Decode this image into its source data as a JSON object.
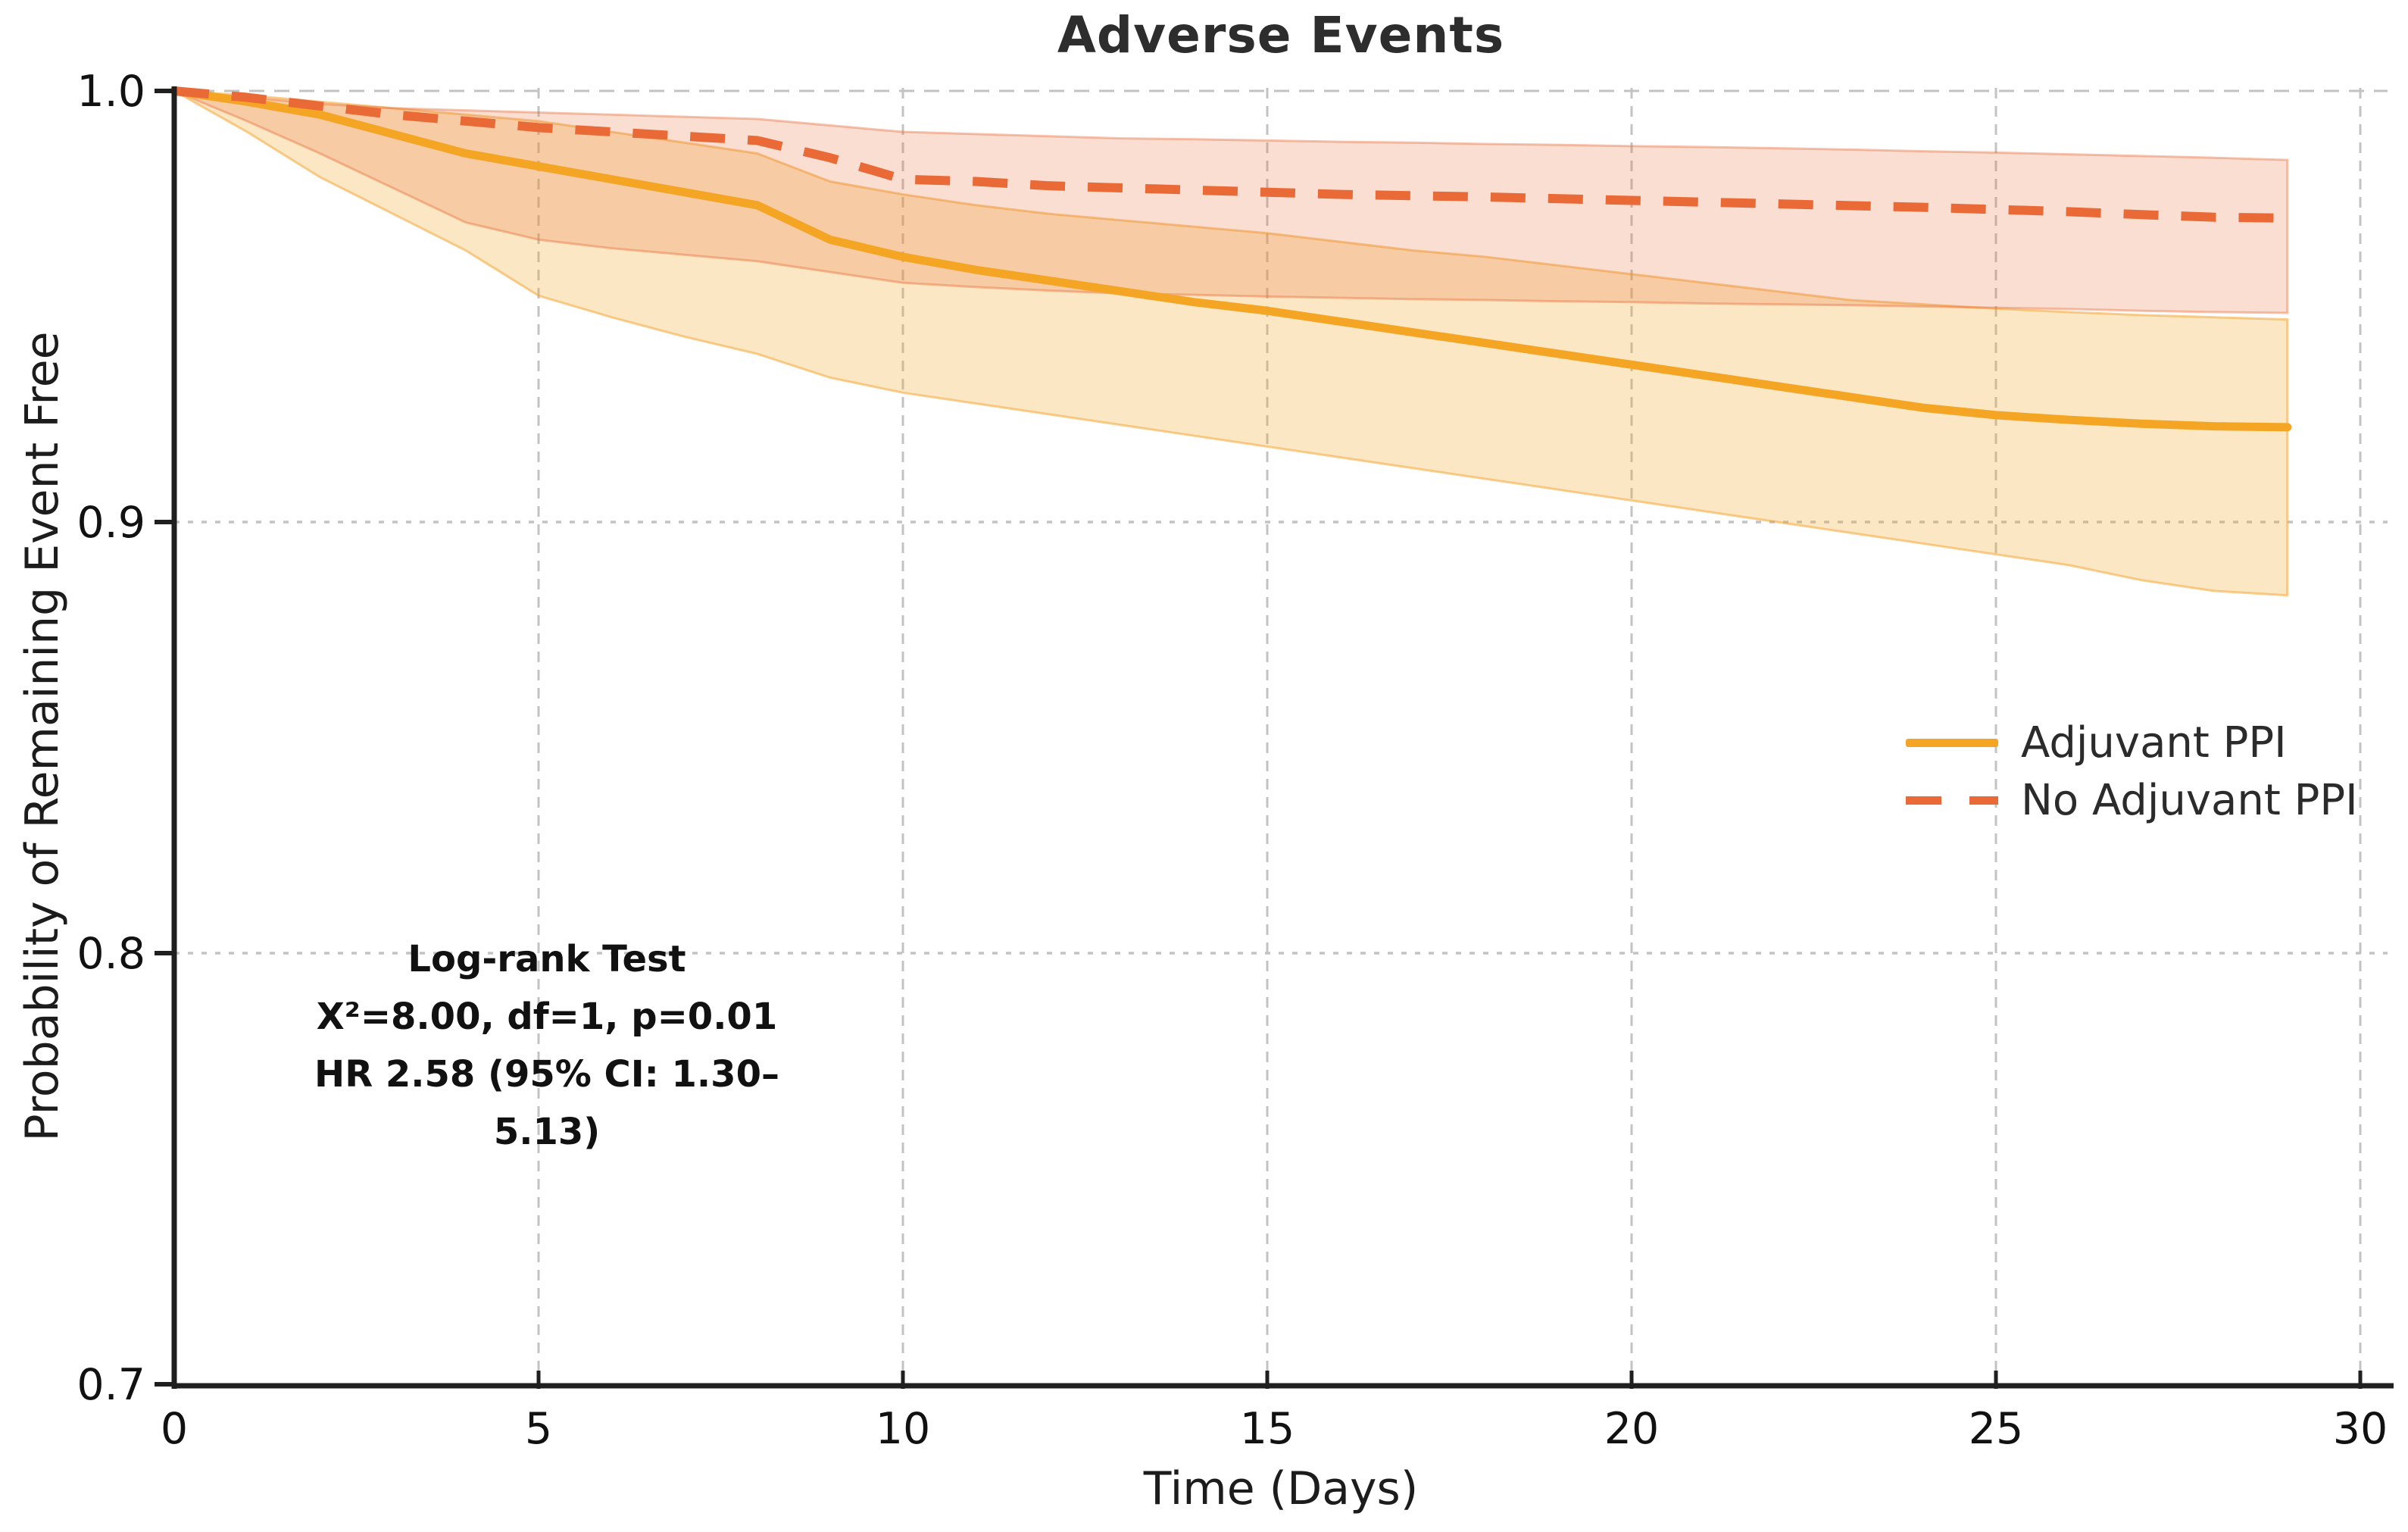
{
  "title": "Adverse Events",
  "axes": {
    "xlabel": "Time (Days)",
    "ylabel": "Probability of Remaining Event Free",
    "xtick_labels": [
      "0",
      "5",
      "10",
      "15",
      "20",
      "25",
      "30"
    ],
    "ytick_labels": [
      "1.0",
      "0.9",
      "0.8",
      "0.7"
    ]
  },
  "legend": {
    "items": [
      {
        "label": "Adjuvant PPI",
        "style": "solid",
        "color": "#F5A524"
      },
      {
        "label": "No Adjuvant PPI",
        "style": "dashed",
        "color": "#E96937"
      }
    ],
    "position": "center right",
    "frame": false
  },
  "annotation": {
    "line1": "Log-rank Test",
    "line2": "X²=8.00, df=1, p=0.01",
    "line3": "HR 2.58 (95% CI: 1.30–5.13)"
  },
  "colors": {
    "solid_curve": "#F5A524",
    "dashed_curve": "#E96937",
    "solid_band_fill": "rgba(245,166,36,0.27)",
    "solid_band_edge": "rgba(244,160,38,0.5)",
    "dashed_band_fill": "rgba(233,105,52,0.22)",
    "dashed_band_edge": "rgba(233,105,52,0.4)",
    "gridline": "#c3c3c3",
    "spine": "#1f1f1f",
    "tick_text": "#111111",
    "title_text": "#2d2d2d"
  },
  "chart_data": {
    "type": "line",
    "title": "Adverse Events",
    "xlabel": "Time (Days)",
    "ylabel": "Probability of Remaining Event Free",
    "xlim": [
      0,
      30.4
    ],
    "ylim": [
      0.7,
      1.0
    ],
    "xticks": [
      0,
      5,
      10,
      15,
      20,
      25,
      30
    ],
    "yticks": [
      1.0,
      0.9,
      0.8,
      0.7
    ],
    "grid": true,
    "legend_position": "center right",
    "x": [
      0,
      1,
      2,
      3,
      4,
      5,
      6,
      7,
      8,
      9,
      10,
      11,
      12,
      13,
      14,
      15,
      16,
      17,
      18,
      19,
      20,
      21,
      22,
      23,
      24,
      25,
      26,
      27,
      28,
      29
    ],
    "series": [
      {
        "name": "Adjuvant PPI",
        "style": "solid",
        "color": "#F5A524",
        "values": [
          1.0,
          0.9975,
          0.9945,
          0.99,
          0.9855,
          0.9825,
          0.9795,
          0.9765,
          0.9735,
          0.9655,
          0.9615,
          0.9585,
          0.956,
          0.9535,
          0.951,
          0.949,
          0.9465,
          0.944,
          0.9415,
          0.939,
          0.9365,
          0.934,
          0.9315,
          0.929,
          0.9265,
          0.9248,
          0.9237,
          0.9228,
          0.9222,
          0.922
        ],
        "ci_upper": [
          1.0,
          0.999,
          0.9975,
          0.996,
          0.9945,
          0.993,
          0.9905,
          0.988,
          0.9855,
          0.979,
          0.976,
          0.9735,
          0.9715,
          0.97,
          0.9685,
          0.967,
          0.965,
          0.963,
          0.9615,
          0.9595,
          0.9575,
          0.9555,
          0.9535,
          0.9515,
          0.9505,
          0.9495,
          0.9487,
          0.948,
          0.9475,
          0.947
        ],
        "ci_lower": [
          1.0,
          0.9905,
          0.98,
          0.9715,
          0.963,
          0.9525,
          0.9475,
          0.943,
          0.939,
          0.9335,
          0.93,
          0.9275,
          0.925,
          0.9225,
          0.92,
          0.9175,
          0.915,
          0.9125,
          0.91,
          0.9075,
          0.905,
          0.9025,
          0.9,
          0.8975,
          0.895,
          0.8925,
          0.89,
          0.8865,
          0.884,
          0.883
        ]
      },
      {
        "name": "No Adjuvant PPI",
        "style": "dashed",
        "color": "#E96937",
        "values": [
          1.0,
          0.9985,
          0.9965,
          0.9945,
          0.993,
          0.9915,
          0.9905,
          0.9895,
          0.9885,
          0.9845,
          0.9795,
          0.979,
          0.978,
          0.9775,
          0.977,
          0.9765,
          0.976,
          0.9757,
          0.9754,
          0.975,
          0.9746,
          0.9742,
          0.9738,
          0.9734,
          0.973,
          0.9725,
          0.972,
          0.9713,
          0.9707,
          0.9705
        ],
        "ci_upper": [
          1.0,
          0.9985,
          0.997,
          0.996,
          0.9955,
          0.995,
          0.9945,
          0.994,
          0.9935,
          0.992,
          0.9905,
          0.99,
          0.9895,
          0.989,
          0.9888,
          0.9885,
          0.9882,
          0.988,
          0.9877,
          0.9875,
          0.9872,
          0.987,
          0.9867,
          0.9864,
          0.986,
          0.9857,
          0.9853,
          0.9849,
          0.9845,
          0.984
        ],
        "ci_lower": [
          1.0,
          0.993,
          0.9855,
          0.9775,
          0.9695,
          0.9655,
          0.9635,
          0.962,
          0.9605,
          0.958,
          0.9555,
          0.9545,
          0.9537,
          0.953,
          0.9527,
          0.9523,
          0.952,
          0.9517,
          0.9515,
          0.9512,
          0.951,
          0.9507,
          0.9505,
          0.9503,
          0.95,
          0.9497,
          0.9494,
          0.949,
          0.9487,
          0.9485
        ]
      }
    ],
    "annotation_lines": [
      "Log-rank Test",
      "X²=8.00, df=1, p=0.01",
      "HR 2.58 (95% CI: 1.30–5.13)"
    ]
  }
}
